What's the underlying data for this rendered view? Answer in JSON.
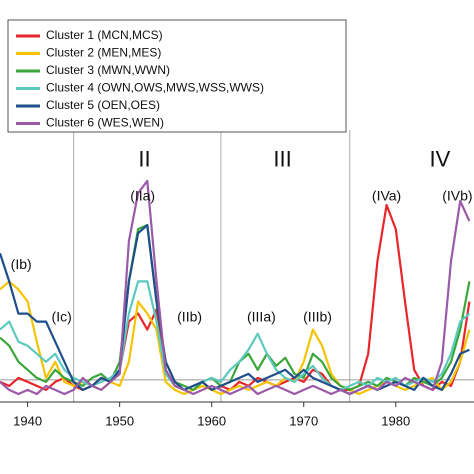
{
  "chart_data": {
    "type": "line",
    "x": [
      1937,
      1938,
      1939,
      1940,
      1941,
      1942,
      1943,
      1944,
      1945,
      1946,
      1947,
      1948,
      1949,
      1950,
      1951,
      1952,
      1953,
      1954,
      1955,
      1956,
      1957,
      1958,
      1959,
      1960,
      1961,
      1962,
      1963,
      1964,
      1965,
      1966,
      1967,
      1968,
      1969,
      1970,
      1971,
      1972,
      1973,
      1974,
      1975,
      1976,
      1977,
      1978,
      1979,
      1980,
      1981,
      1982,
      1983,
      1984,
      1985,
      1986,
      1987,
      1988
    ],
    "series": [
      {
        "name": "Cluster 1 (MCN,MCS)",
        "color": "#e8262a",
        "values": [
          0.05,
          0.04,
          0.06,
          0.05,
          0.04,
          0.03,
          0.05,
          0.06,
          0.04,
          0.03,
          0.04,
          0.06,
          0.05,
          0.08,
          0.2,
          0.22,
          0.18,
          0.23,
          0.08,
          0.04,
          0.03,
          0.04,
          0.05,
          0.03,
          0.04,
          0.03,
          0.05,
          0.04,
          0.06,
          0.05,
          0.04,
          0.05,
          0.06,
          0.05,
          0.08,
          0.07,
          0.04,
          0.03,
          0.03,
          0.04,
          0.12,
          0.35,
          0.49,
          0.43,
          0.25,
          0.08,
          0.04,
          0.03,
          0.05,
          0.04,
          0.1,
          0.25
        ]
      },
      {
        "name": "Cluster 2 (MEN,MES)",
        "color": "#f5c400",
        "values": [
          0.28,
          0.3,
          0.28,
          0.25,
          0.15,
          0.06,
          0.1,
          0.05,
          0.04,
          0.05,
          0.04,
          0.03,
          0.05,
          0.04,
          0.1,
          0.25,
          0.22,
          0.18,
          0.05,
          0.03,
          0.02,
          0.03,
          0.04,
          0.03,
          0.02,
          0.03,
          0.04,
          0.03,
          0.04,
          0.05,
          0.04,
          0.06,
          0.05,
          0.1,
          0.18,
          0.14,
          0.07,
          0.04,
          0.03,
          0.02,
          0.03,
          0.04,
          0.05,
          0.04,
          0.03,
          0.04,
          0.05,
          0.06,
          0.03,
          0.05,
          0.1,
          0.18
        ]
      },
      {
        "name": "Cluster 3 (MWN,WWN)",
        "color": "#3aa63a",
        "values": [
          0.16,
          0.14,
          0.1,
          0.08,
          0.06,
          0.05,
          0.08,
          0.06,
          0.05,
          0.04,
          0.06,
          0.07,
          0.05,
          0.1,
          0.3,
          0.43,
          0.44,
          0.25,
          0.1,
          0.05,
          0.04,
          0.03,
          0.05,
          0.06,
          0.04,
          0.05,
          0.1,
          0.12,
          0.08,
          0.12,
          0.09,
          0.11,
          0.07,
          0.06,
          0.12,
          0.1,
          0.06,
          0.04,
          0.03,
          0.04,
          0.05,
          0.04,
          0.06,
          0.05,
          0.04,
          0.06,
          0.05,
          0.04,
          0.06,
          0.1,
          0.18,
          0.3
        ]
      },
      {
        "name": "Cluster 4 (OWN,OWS,MWS,WSS,WWS)",
        "color": "#5cc9c0",
        "values": [
          0.18,
          0.2,
          0.15,
          0.14,
          0.12,
          0.1,
          0.12,
          0.08,
          0.06,
          0.05,
          0.04,
          0.05,
          0.06,
          0.08,
          0.22,
          0.3,
          0.3,
          0.2,
          0.07,
          0.04,
          0.03,
          0.04,
          0.05,
          0.06,
          0.05,
          0.08,
          0.1,
          0.13,
          0.17,
          0.12,
          0.08,
          0.06,
          0.05,
          0.07,
          0.09,
          0.06,
          0.04,
          0.03,
          0.04,
          0.05,
          0.04,
          0.06,
          0.05,
          0.06,
          0.04,
          0.05,
          0.06,
          0.05,
          0.07,
          0.12,
          0.2,
          0.22
        ]
      },
      {
        "name": "Cluster 5 (OEN,OES)",
        "color": "#1f4e8c",
        "values": [
          0.37,
          0.3,
          0.22,
          0.22,
          0.2,
          0.2,
          0.15,
          0.1,
          0.05,
          0.03,
          0.04,
          0.06,
          0.05,
          0.08,
          0.3,
          0.42,
          0.44,
          0.25,
          0.1,
          0.05,
          0.03,
          0.04,
          0.05,
          0.03,
          0.04,
          0.05,
          0.06,
          0.07,
          0.05,
          0.06,
          0.07,
          0.08,
          0.06,
          0.08,
          0.06,
          0.05,
          0.04,
          0.03,
          0.02,
          0.03,
          0.04,
          0.03,
          0.04,
          0.05,
          0.04,
          0.03,
          0.06,
          0.04,
          0.03,
          0.07,
          0.12,
          0.13
        ]
      },
      {
        "name": "Cluster 6 (WES,WEN)",
        "color": "#9b5aa8",
        "values": [
          0.05,
          0.03,
          0.02,
          0.03,
          0.02,
          0.04,
          0.03,
          0.02,
          0.03,
          0.06,
          0.04,
          0.03,
          0.05,
          0.07,
          0.4,
          0.52,
          0.55,
          0.3,
          0.08,
          0.04,
          0.03,
          0.02,
          0.03,
          0.04,
          0.03,
          0.02,
          0.03,
          0.04,
          0.02,
          0.03,
          0.04,
          0.03,
          0.02,
          0.03,
          0.04,
          0.03,
          0.02,
          0.03,
          0.02,
          0.03,
          0.04,
          0.03,
          0.05,
          0.04,
          0.06,
          0.05,
          0.04,
          0.03,
          0.1,
          0.35,
          0.5,
          0.45
        ]
      }
    ],
    "xlim": [
      1937,
      1988.5
    ],
    "xticks": [
      1940,
      1950,
      1960,
      1970,
      1980,
      1990
    ],
    "ylim": [
      0,
      1
    ],
    "reference_line": 0.055,
    "period_lines": [
      1945,
      1961,
      1975
    ],
    "annotations": [
      {
        "text": "II",
        "x": 1952.7,
        "y": 0.6,
        "size": "big"
      },
      {
        "text": "III",
        "x": 1967.7,
        "y": 0.6,
        "size": "big"
      },
      {
        "text": "IV",
        "x": 1984.8,
        "y": 0.6,
        "size": "big"
      },
      {
        "text": "(IIa)",
        "x": 1952.5,
        "y": 0.51
      },
      {
        "text": "(IVa)",
        "x": 1979,
        "y": 0.51
      },
      {
        "text": "(IVb)",
        "x": 1986.7,
        "y": 0.51
      },
      {
        "text": "(Ib)",
        "x": 1939.3,
        "y": 0.34
      },
      {
        "text": "(Ic)",
        "x": 1943.7,
        "y": 0.21
      },
      {
        "text": "(IIb)",
        "x": 1957.6,
        "y": 0.21
      },
      {
        "text": "(IIIa)",
        "x": 1965.4,
        "y": 0.21
      },
      {
        "text": "(IIIb)",
        "x": 1971.5,
        "y": 0.21
      }
    ]
  }
}
